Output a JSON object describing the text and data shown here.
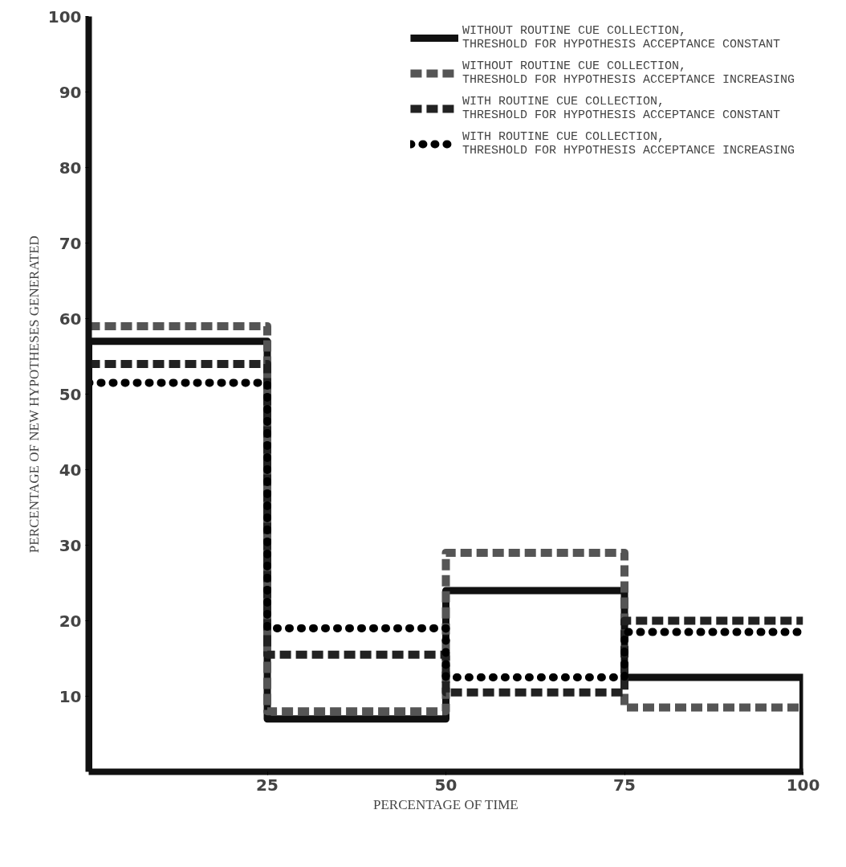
{
  "chart_data": {
    "type": "histogram",
    "xlabel": "PERCENTAGE OF TIME",
    "ylabel": "PERCENTAGE OF NEW HYPOTHESES GENERATED",
    "bins": [
      0,
      25,
      50,
      75,
      100
    ],
    "series": [
      {
        "name": "WITHOUT ROUTINE CUE COLLECTION,\nTHRESHOLD FOR HYPOTHESIS ACCEPTANCE CONSTANT",
        "color": "#111111",
        "line_style": "solid",
        "values": [
          57,
          7,
          24,
          12.5
        ]
      },
      {
        "name": "WITHOUT ROUTINE CUE COLLECTION,\nTHRESHOLD FOR HYPOTHESIS ACCEPTANCE INCREASING",
        "color": "#555555",
        "line_style": "dashed",
        "values": [
          59,
          8,
          29,
          8.5
        ]
      },
      {
        "name": "WITH ROUTINE CUE COLLECTION,\nTHRESHOLD FOR HYPOTHESIS ACCEPTANCE CONSTANT",
        "color": "#222222",
        "line_style": "dashed",
        "values": [
          54,
          15.5,
          10.5,
          20
        ]
      },
      {
        "name": "WITH ROUTINE CUE COLLECTION,\nTHRESHOLD FOR HYPOTHESIS ACCEPTANCE INCREASING",
        "color": "#000000",
        "line_style": "dotted",
        "values": [
          51.5,
          19,
          12.5,
          18.5
        ]
      }
    ],
    "xlim": [
      0,
      100
    ],
    "ylim": [
      0,
      100
    ],
    "xticks": [
      25,
      50,
      75,
      100
    ],
    "yticks": [
      10,
      20,
      30,
      40,
      50,
      60,
      70,
      80,
      90,
      100
    ],
    "grid": false,
    "legend": "top right"
  }
}
